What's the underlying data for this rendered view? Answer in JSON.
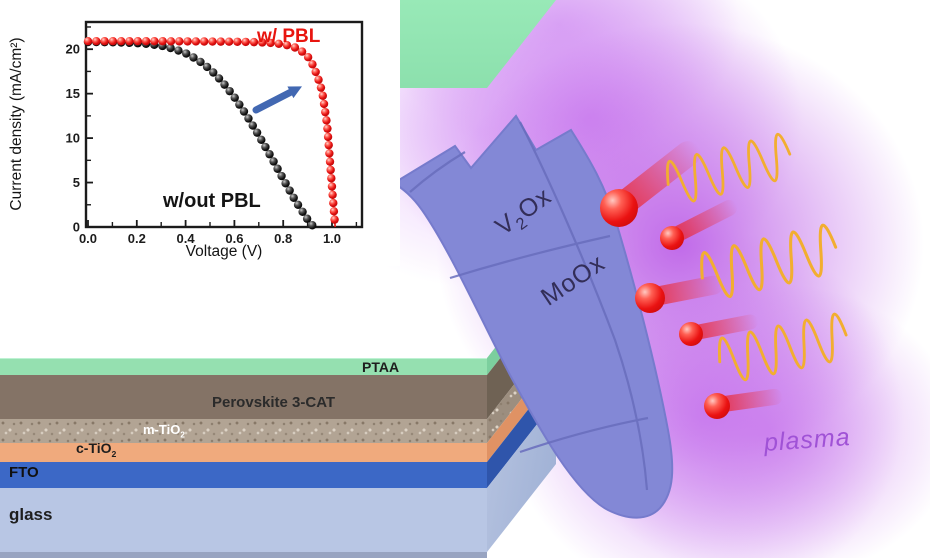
{
  "chart_data": {
    "type": "line",
    "title": "",
    "xlabel": "Voltage (V)",
    "ylabel": "Current density (mA/cm²)",
    "xlim": [
      0,
      1.13
    ],
    "ylim": [
      0,
      23.1
    ],
    "xticks": [
      0.0,
      0.2,
      0.4,
      0.6,
      0.8,
      1.0
    ],
    "yticks": [
      0,
      5,
      10,
      15,
      20
    ],
    "grid": false,
    "legend_position": "none",
    "series": [
      {
        "name": "w/out PBL",
        "color": "#141414",
        "points": [
          [
            0,
            20.8
          ],
          [
            0.05,
            20.8
          ],
          [
            0.1,
            20.78
          ],
          [
            0.15,
            20.74
          ],
          [
            0.2,
            20.68
          ],
          [
            0.25,
            20.58
          ],
          [
            0.3,
            20.4
          ],
          [
            0.35,
            20.05
          ],
          [
            0.4,
            19.55
          ],
          [
            0.45,
            18.8
          ],
          [
            0.5,
            17.75
          ],
          [
            0.55,
            16.35
          ],
          [
            0.6,
            14.6
          ],
          [
            0.65,
            12.55
          ],
          [
            0.7,
            10.3
          ],
          [
            0.75,
            7.9
          ],
          [
            0.8,
            5.4
          ],
          [
            0.85,
            2.95
          ],
          [
            0.9,
            0.85
          ],
          [
            0.925,
            0
          ]
        ]
      },
      {
        "name": "w/ PBL",
        "color": "#e8150f",
        "points": [
          [
            0,
            20.9
          ],
          [
            0.05,
            20.9
          ],
          [
            0.1,
            20.9
          ],
          [
            0.15,
            20.9
          ],
          [
            0.2,
            20.9
          ],
          [
            0.25,
            20.9
          ],
          [
            0.3,
            20.9
          ],
          [
            0.35,
            20.88
          ],
          [
            0.4,
            20.88
          ],
          [
            0.45,
            20.87
          ],
          [
            0.5,
            20.86
          ],
          [
            0.55,
            20.85
          ],
          [
            0.6,
            20.84
          ],
          [
            0.65,
            20.82
          ],
          [
            0.7,
            20.78
          ],
          [
            0.75,
            20.7
          ],
          [
            0.8,
            20.55
          ],
          [
            0.84,
            20.3
          ],
          [
            0.87,
            19.9
          ],
          [
            0.9,
            19.2
          ],
          [
            0.92,
            18.3
          ],
          [
            0.94,
            17.0
          ],
          [
            0.96,
            15.2
          ],
          [
            0.98,
            11.5
          ],
          [
            1.0,
            4.5
          ],
          [
            1.013,
            0
          ]
        ]
      }
    ],
    "annotations": [
      {
        "text": "w/ PBL",
        "color": "#e8150f"
      },
      {
        "text": "w/out PBL",
        "color": "#141414"
      }
    ],
    "arrow_color": "#4268b2"
  },
  "stack": {
    "layers": [
      {
        "label": "PTAA",
        "front": "#95e0b0",
        "side": "#7ccf9e",
        "top": "#90e5b1"
      },
      {
        "label": "Perovskite 3-CAT",
        "front": "#847366",
        "side": "#6f6254"
      },
      {
        "label_pre": "m-TiO",
        "label_sub": "2",
        "front": "#b2a494",
        "side": "#9c8e7f"
      },
      {
        "label_pre": "c-TiO",
        "label_sub": "2",
        "front": "#f0aa7d",
        "side": "#e09264"
      },
      {
        "label": "FTO",
        "front": "#3c68c6",
        "side": "#2f55ab"
      },
      {
        "label": "glass",
        "front": "#b8c6e4",
        "side": "#a3b3d6"
      }
    ]
  },
  "shield": {
    "fill": "#8388d6",
    "vein_color": "#696dbd",
    "label_top": {
      "pre": "V",
      "sub": "2",
      "post": "Ox"
    },
    "label_bottom": {
      "text": "MoOx"
    }
  },
  "plasma": {
    "label": "plasma",
    "text_color": "#a052d6",
    "glow_color": "#c06ae0"
  },
  "particles": {
    "color": "#e81414",
    "count": 5
  },
  "waves": {
    "color": "#f2ae30",
    "count": 3
  }
}
